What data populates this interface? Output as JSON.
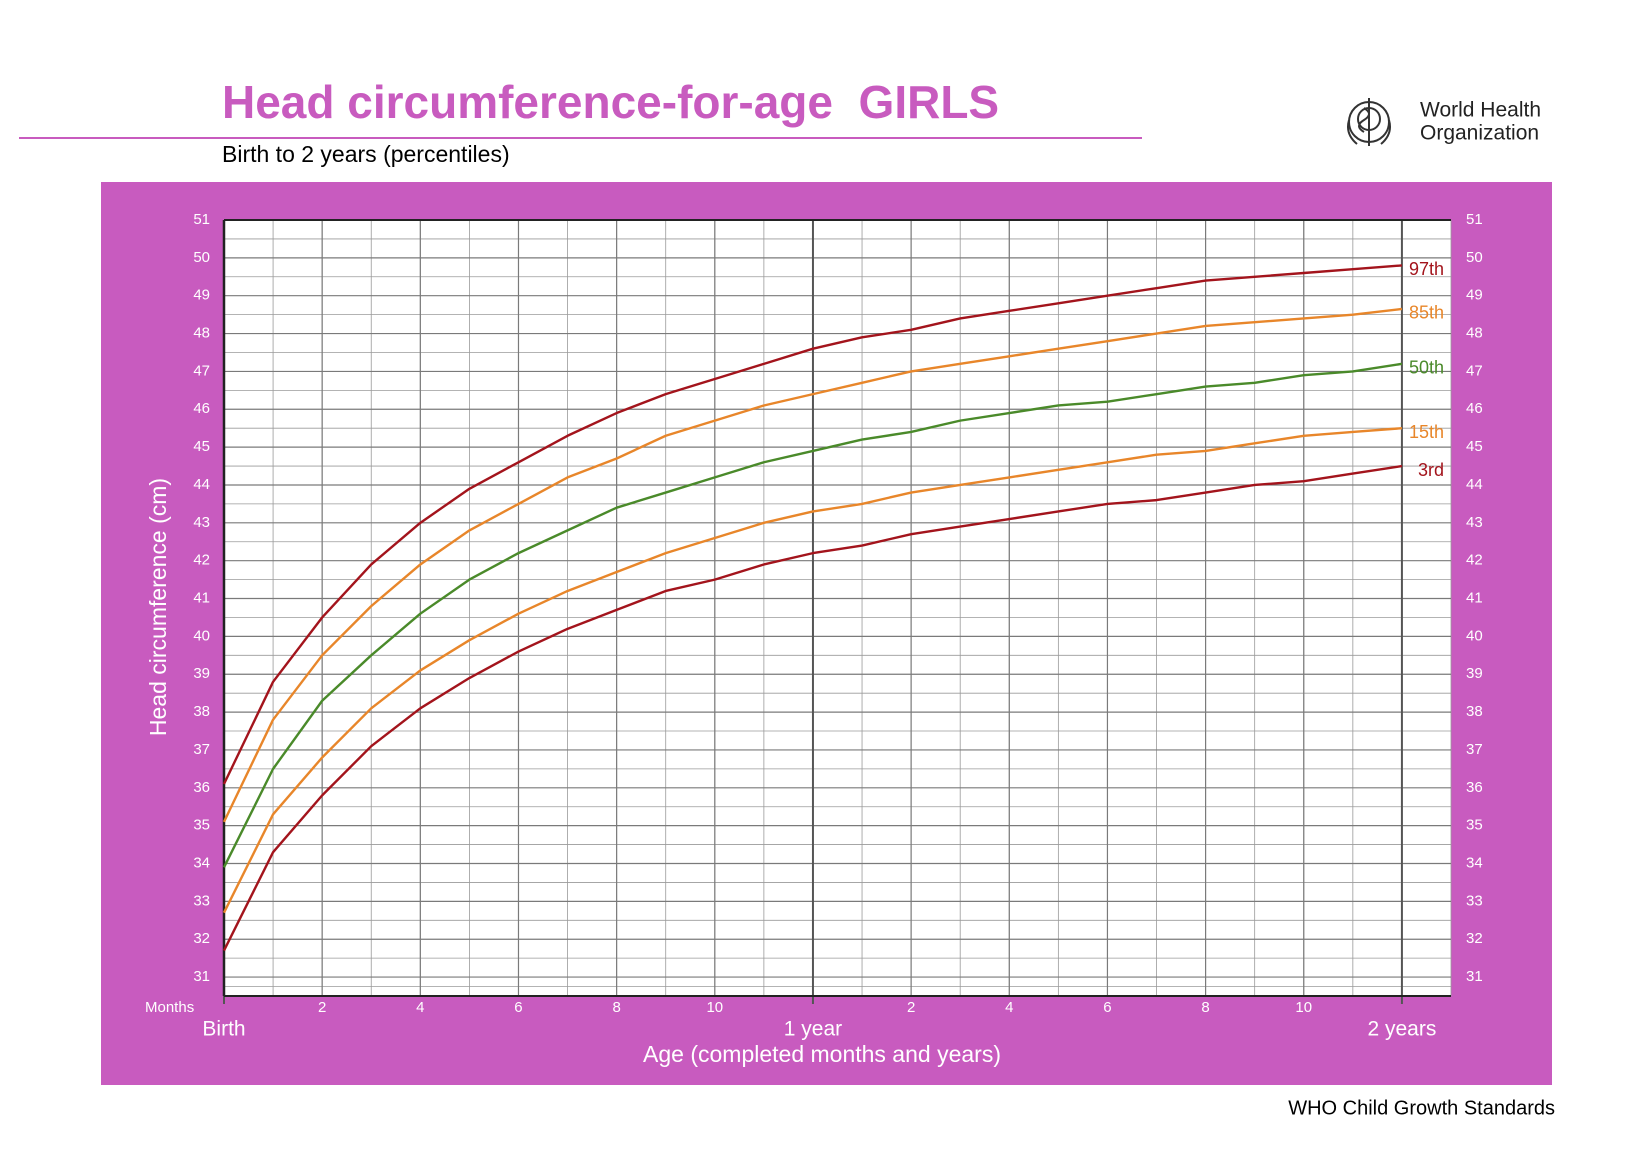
{
  "chart_data": {
    "type": "line",
    "title": "Head circumference-for-age  GIRLS",
    "subtitle": "Birth to 2 years (percentiles)",
    "organization": [
      "World Health",
      "Organization"
    ],
    "footer": "WHO Child Growth Standards",
    "y_label": "Head circumference (cm)",
    "x_label": "Age (completed months and years)",
    "x_unit_label": "Months",
    "x": [
      0,
      1,
      2,
      3,
      4,
      5,
      6,
      7,
      8,
      9,
      10,
      11,
      12,
      13,
      14,
      15,
      16,
      17,
      18,
      19,
      20,
      21,
      22,
      23,
      24
    ],
    "series": [
      {
        "name": "97th",
        "color": "#a3141c",
        "values": [
          36.1,
          38.8,
          40.5,
          41.9,
          43.0,
          43.9,
          44.6,
          45.3,
          45.9,
          46.4,
          46.8,
          47.2,
          47.6,
          47.9,
          48.1,
          48.4,
          48.6,
          48.8,
          49.0,
          49.2,
          49.4,
          49.5,
          49.6,
          49.7,
          49.8
        ]
      },
      {
        "name": "85th",
        "color": "#e8862a",
        "values": [
          35.1,
          37.8,
          39.5,
          40.8,
          41.9,
          42.8,
          43.5,
          44.2,
          44.7,
          45.3,
          45.7,
          46.1,
          46.4,
          46.7,
          47.0,
          47.2,
          47.4,
          47.6,
          47.8,
          48.0,
          48.2,
          48.3,
          48.4,
          48.5,
          48.65
        ]
      },
      {
        "name": "50th",
        "color": "#4a8a2a",
        "values": [
          33.9,
          36.5,
          38.3,
          39.5,
          40.6,
          41.5,
          42.2,
          42.8,
          43.4,
          43.8,
          44.2,
          44.6,
          44.9,
          45.2,
          45.4,
          45.7,
          45.9,
          46.1,
          46.2,
          46.4,
          46.6,
          46.7,
          46.9,
          47.0,
          47.2
        ]
      },
      {
        "name": "15th",
        "color": "#e8862a",
        "values": [
          32.7,
          35.3,
          36.8,
          38.1,
          39.1,
          39.9,
          40.6,
          41.2,
          41.7,
          42.2,
          42.6,
          43.0,
          43.3,
          43.5,
          43.8,
          44.0,
          44.2,
          44.4,
          44.6,
          44.8,
          44.9,
          45.1,
          45.3,
          45.4,
          45.5
        ]
      },
      {
        "name": "3rd",
        "color": "#a3141c",
        "values": [
          31.7,
          34.3,
          35.8,
          37.1,
          38.1,
          38.9,
          39.6,
          40.2,
          40.7,
          41.2,
          41.5,
          41.9,
          42.2,
          42.4,
          42.7,
          42.9,
          43.1,
          43.3,
          43.5,
          43.6,
          43.8,
          44.0,
          44.1,
          44.3,
          44.5
        ]
      }
    ],
    "xlim": [
      0,
      25
    ],
    "ylim": [
      30.5,
      51
    ],
    "xticks": [
      2,
      4,
      6,
      8,
      10,
      {
        "value": 14,
        "label": "2"
      },
      {
        "value": 16,
        "label": "4"
      },
      {
        "value": 18,
        "label": "6"
      },
      {
        "value": 20,
        "label": "8"
      },
      {
        "value": 22,
        "label": "10"
      }
    ],
    "xmajor": [
      {
        "value": 0,
        "label": "Birth"
      },
      {
        "value": 12,
        "label": "1 year"
      },
      {
        "value": 24,
        "label": "2 years"
      }
    ],
    "yticks": [
      31,
      32,
      33,
      34,
      35,
      36,
      37,
      38,
      39,
      40,
      41,
      42,
      43,
      44,
      45,
      46,
      47,
      48,
      49,
      50,
      51
    ],
    "grid": true
  }
}
